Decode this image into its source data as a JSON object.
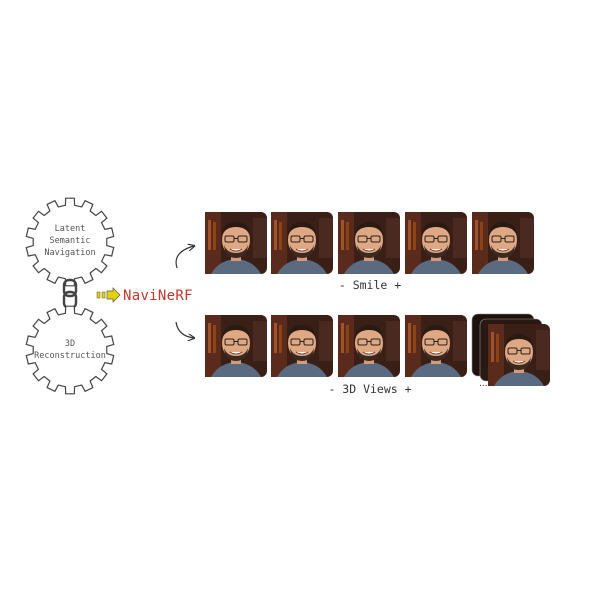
{
  "gears": [
    {
      "lines": [
        "Latent",
        "Semantic",
        "Navigation"
      ]
    },
    {
      "lines": [
        "3D",
        "Reconstruction"
      ]
    }
  ],
  "brand": {
    "text": "NaviNeRF",
    "color": "#c0392b",
    "arrow_color": "#e6d200"
  },
  "rows": [
    {
      "label": "-  Smile  +",
      "thumb_count": 5
    },
    {
      "label": "-  3D Views  +",
      "thumb_count": 5,
      "ellipsis": "..."
    }
  ]
}
